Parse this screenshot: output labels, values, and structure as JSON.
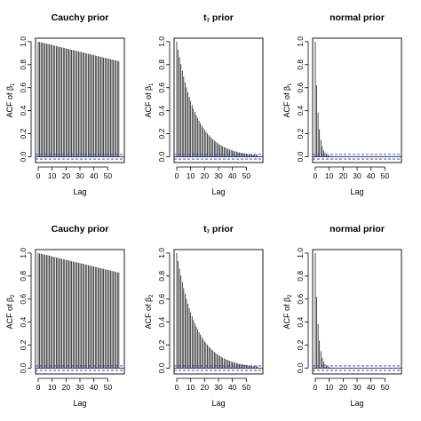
{
  "chart_data": [
    {
      "type": "bar",
      "title_main": "Cauchy prior",
      "title_sub": "",
      "ylabel": "ACF of β",
      "ylabel_sub": "1",
      "xlabel": "Lag",
      "xlim": [
        0,
        60
      ],
      "ylim": [
        0,
        1
      ],
      "xticks": [
        0,
        10,
        20,
        30,
        40,
        50
      ],
      "yticks": [
        0.0,
        0.2,
        0.4,
        0.6,
        0.8,
        1.0
      ],
      "model": "linear",
      "max_lag": 58,
      "end_value": 0.83,
      "ci": 0.02,
      "grid": false
    },
    {
      "type": "bar",
      "title_main": "t",
      "title_sub": "7",
      "title_rest": " prior",
      "ylabel": "ACF of β",
      "ylabel_sub": "1",
      "xlabel": "Lag",
      "xlim": [
        0,
        60
      ],
      "ylim": [
        0,
        1
      ],
      "xticks": [
        0,
        10,
        20,
        30,
        40,
        50
      ],
      "yticks": [
        0.0,
        0.2,
        0.4,
        0.6,
        0.8,
        1.0
      ],
      "model": "geometric",
      "max_lag": 58,
      "rho": 0.93,
      "ci": 0.02,
      "grid": false
    },
    {
      "type": "bar",
      "title_main": "normal prior",
      "title_sub": "",
      "ylabel": "ACF of β",
      "ylabel_sub": "1",
      "xlabel": "Lag",
      "xlim": [
        0,
        60
      ],
      "ylim": [
        0,
        1
      ],
      "xticks": [
        0,
        10,
        20,
        30,
        40,
        50
      ],
      "yticks": [
        0.0,
        0.2,
        0.4,
        0.6,
        0.8,
        1.0
      ],
      "model": "geometric",
      "max_lag": 58,
      "rho": 0.62,
      "ci": 0.02,
      "grid": false
    },
    {
      "type": "bar",
      "title_main": "Cauchy prior",
      "title_sub": "",
      "ylabel": "ACF of β",
      "ylabel_sub": "2",
      "xlabel": "Lag",
      "xlim": [
        0,
        60
      ],
      "ylim": [
        0,
        1
      ],
      "xticks": [
        0,
        10,
        20,
        30,
        40,
        50
      ],
      "yticks": [
        0.0,
        0.2,
        0.4,
        0.6,
        0.8,
        1.0
      ],
      "model": "linear",
      "max_lag": 58,
      "end_value": 0.83,
      "ci": 0.02,
      "grid": false
    },
    {
      "type": "bar",
      "title_main": "t",
      "title_sub": "7",
      "title_rest": " prior",
      "ylabel": "ACF of β",
      "ylabel_sub": "2",
      "xlabel": "Lag",
      "xlim": [
        0,
        60
      ],
      "ylim": [
        0,
        1
      ],
      "xticks": [
        0,
        10,
        20,
        30,
        40,
        50
      ],
      "yticks": [
        0.0,
        0.2,
        0.4,
        0.6,
        0.8,
        1.0
      ],
      "model": "geometric",
      "max_lag": 58,
      "rho": 0.93,
      "ci": 0.02,
      "grid": false
    },
    {
      "type": "bar",
      "title_main": "normal prior",
      "title_sub": "",
      "ylabel": "ACF of β",
      "ylabel_sub": "2",
      "xlabel": "Lag",
      "xlim": [
        0,
        60
      ],
      "ylim": [
        0,
        1
      ],
      "xticks": [
        0,
        10,
        20,
        30,
        40,
        50
      ],
      "yticks": [
        0.0,
        0.2,
        0.4,
        0.6,
        0.8,
        1.0
      ],
      "model": "geometric",
      "max_lag": 58,
      "rho": 0.62,
      "ci": 0.02,
      "grid": false
    }
  ],
  "colors": {
    "bars": "#000000",
    "confidence_band": "#2233cc",
    "frame": "#000000"
  }
}
